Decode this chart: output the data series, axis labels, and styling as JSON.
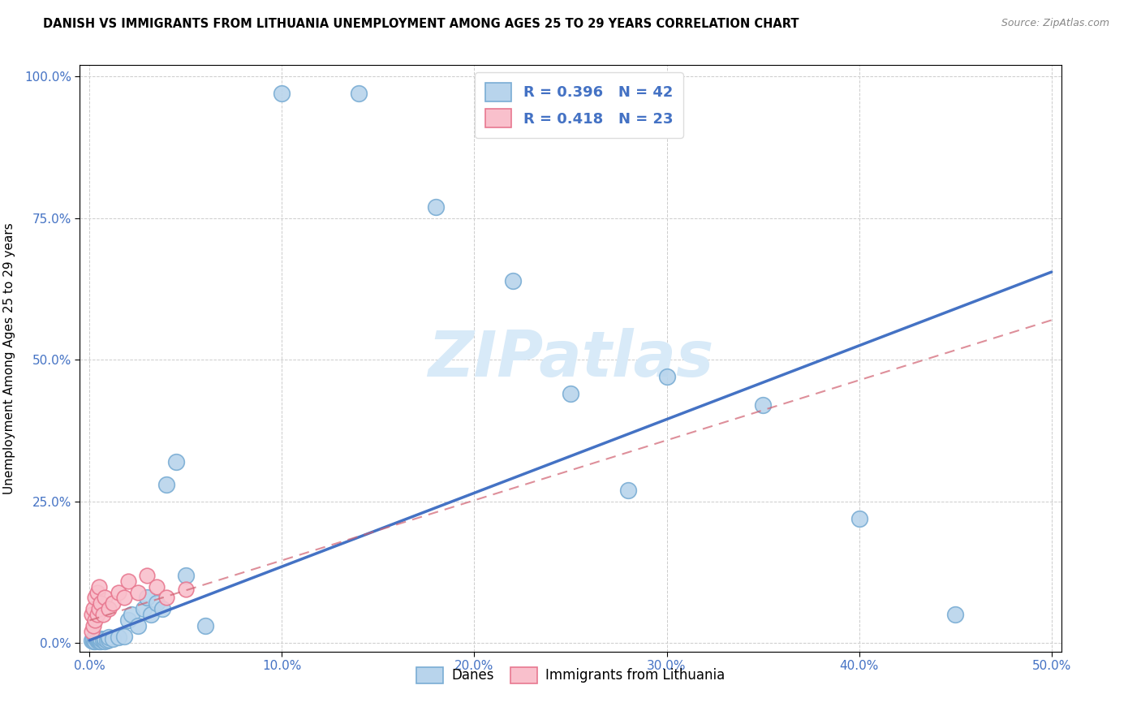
{
  "title": "DANISH VS IMMIGRANTS FROM LITHUANIA UNEMPLOYMENT AMONG AGES 25 TO 29 YEARS CORRELATION CHART",
  "source": "Source: ZipAtlas.com",
  "ylabel_label": "Unemployment Among Ages 25 to 29 years",
  "legend_r_danes": "R = 0.396",
  "legend_n_danes": "N = 42",
  "legend_r_lith": "R = 0.418",
  "legend_n_lith": "N = 23",
  "danes_face_color": "#b8d4ec",
  "danes_edge_color": "#7aadd4",
  "lith_face_color": "#f9c0cc",
  "lith_edge_color": "#e87890",
  "danes_line_color": "#4472c4",
  "lith_line_color": "#d4607080",
  "lith_line_color_solid": "#d06070",
  "watermark_color": "#d8eaf8",
  "danes_x": [
    0.001,
    0.002,
    0.002,
    0.003,
    0.003,
    0.004,
    0.004,
    0.005,
    0.005,
    0.006,
    0.006,
    0.007,
    0.008,
    0.008,
    0.009,
    0.01,
    0.01,
    0.012,
    0.015,
    0.018,
    0.02,
    0.022,
    0.025,
    0.028,
    0.03,
    0.032,
    0.035,
    0.038,
    0.04,
    0.045,
    0.05,
    0.06,
    0.1,
    0.14,
    0.18,
    0.22,
    0.25,
    0.28,
    0.3,
    0.35,
    0.4,
    0.45
  ],
  "danes_y": [
    0.005,
    0.003,
    0.008,
    0.004,
    0.01,
    0.005,
    0.007,
    0.003,
    0.006,
    0.004,
    0.008,
    0.005,
    0.004,
    0.007,
    0.005,
    0.006,
    0.01,
    0.008,
    0.01,
    0.012,
    0.04,
    0.05,
    0.03,
    0.06,
    0.08,
    0.05,
    0.07,
    0.06,
    0.28,
    0.32,
    0.12,
    0.03,
    0.97,
    0.97,
    0.77,
    0.64,
    0.44,
    0.27,
    0.47,
    0.42,
    0.22,
    0.05
  ],
  "lith_x": [
    0.001,
    0.001,
    0.002,
    0.002,
    0.003,
    0.003,
    0.004,
    0.004,
    0.005,
    0.005,
    0.006,
    0.007,
    0.008,
    0.01,
    0.012,
    0.015,
    0.018,
    0.02,
    0.025,
    0.03,
    0.035,
    0.04,
    0.05
  ],
  "lith_y": [
    0.02,
    0.05,
    0.03,
    0.06,
    0.04,
    0.08,
    0.05,
    0.09,
    0.06,
    0.1,
    0.07,
    0.05,
    0.08,
    0.06,
    0.07,
    0.09,
    0.08,
    0.11,
    0.09,
    0.12,
    0.1,
    0.08,
    0.095
  ],
  "danes_line_x": [
    0.0,
    0.5
  ],
  "danes_line_y": [
    0.005,
    0.655
  ],
  "lith_line_x": [
    0.0,
    0.5
  ],
  "lith_line_y": [
    0.04,
    0.57
  ],
  "xlim": [
    -0.005,
    0.505
  ],
  "ylim": [
    -0.015,
    1.02
  ],
  "x_ticks": [
    0.0,
    0.1,
    0.2,
    0.3,
    0.4,
    0.5
  ],
  "y_ticks": [
    0.0,
    0.25,
    0.5,
    0.75,
    1.0
  ]
}
